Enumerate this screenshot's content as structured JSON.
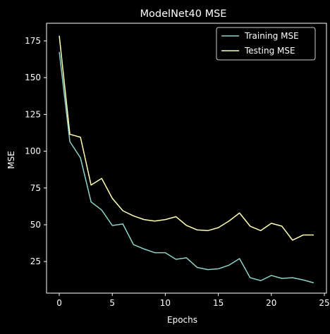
{
  "chart_data": {
    "type": "line",
    "title": "ModelNet40 MSE",
    "xlabel": "Epochs",
    "ylabel": "MSE",
    "xlim": [
      -1.2,
      25.2
    ],
    "ylim": [
      3.5,
      187
    ],
    "xticks": [
      0,
      5,
      10,
      15,
      20,
      25
    ],
    "yticks": [
      25,
      50,
      75,
      100,
      125,
      150,
      175
    ],
    "grid": false,
    "legend_position": "top-right",
    "x": [
      0,
      1,
      2,
      3,
      4,
      5,
      6,
      7,
      8,
      9,
      10,
      11,
      12,
      13,
      14,
      15,
      16,
      17,
      18,
      19,
      20,
      21,
      22,
      23,
      24
    ],
    "series": [
      {
        "name": "Training MSE",
        "color": "#8dd3c7",
        "values": [
          167.5,
          106.5,
          95.5,
          65.5,
          60,
          49.5,
          50.5,
          36.5,
          33.5,
          31,
          31,
          26.5,
          27.5,
          21,
          19.5,
          20,
          22.5,
          27,
          14,
          12,
          15.5,
          13.5,
          14,
          12.5,
          10.5
        ]
      },
      {
        "name": "Testing MSE",
        "color": "#ffffb3",
        "values": [
          178.5,
          111.5,
          109.5,
          77,
          81.5,
          68,
          59.5,
          56,
          53.5,
          52.5,
          53.5,
          55.5,
          49.5,
          46.5,
          46,
          48,
          52.5,
          58,
          49,
          46,
          51,
          49,
          39.5,
          43,
          43
        ]
      }
    ]
  }
}
